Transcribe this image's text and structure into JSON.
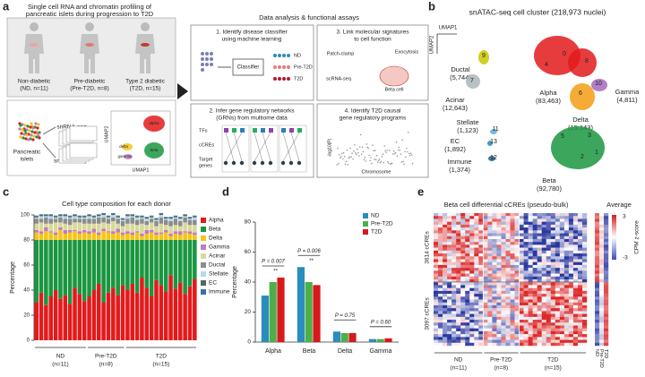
{
  "panel_labels": [
    "a",
    "b",
    "c",
    "d",
    "e"
  ],
  "panel_a": {
    "header": [
      "Single cell RNA and chromatin profiling of",
      "pancreatic islets during progression to T2D"
    ],
    "donors": [
      [
        "Non-diabetic",
        "(ND, n=11)"
      ],
      [
        "Pre-diabetic",
        "(Pre-T2D, n=8)"
      ],
      [
        "Type 2 diabetic",
        "(T2D, n=15)"
      ]
    ],
    "islets": [
      "Pancreatic",
      "islets"
    ],
    "assays": [
      "snRNA-seq",
      "snATAC-seq"
    ],
    "umap_axes": [
      "UMAP2",
      "UMAP1"
    ],
    "umap_clusters": [
      "alpha",
      "beta",
      "delta",
      "gamma"
    ],
    "right_title": "Data analysis & functional assays",
    "box1": {
      "title": [
        "1. Identify disease classifier",
        "using machine learning"
      ],
      "classifier": "Classifier",
      "classes": [
        "ND",
        "Pre-T2D",
        "T2D"
      ]
    },
    "box2": {
      "title": [
        "2. Infer gene regulatory networks",
        "(GRNs) from multiome data"
      ],
      "rows": [
        "TFs",
        "cCREs",
        [
          "Target",
          "genes"
        ]
      ]
    },
    "box3": {
      "title": [
        "3. Link molecular signatures",
        "to cell function"
      ],
      "patch": "Patch-clamp",
      "exo": "Exocytosis",
      "sc": "scRNA-seq",
      "cell": "Beta cell"
    },
    "box4": {
      "title": [
        "4. Identify T2D causal",
        "gene regulatory programs"
      ],
      "ylabel": "-log10(P)",
      "xlabel": "Chromosome"
    }
  },
  "panel_b": {
    "title": "snATAC-seq cell cluster (218,973 nuclei)",
    "axes": [
      "UMAP1",
      "UMAP2"
    ],
    "clusters": [
      {
        "name": "Alpha",
        "count": "(83,463)",
        "ids": [
          "0",
          "4",
          "8"
        ]
      },
      {
        "name": "Gamma",
        "count": "(4,811)",
        "ids": [
          "10"
        ]
      },
      {
        "name": "Delta",
        "count": "(15,143)",
        "ids": [
          "6"
        ]
      },
      {
        "name": "Beta",
        "count": "(92,780)",
        "ids": [
          "5",
          "3",
          "2",
          "1"
        ]
      },
      {
        "name": "Ductal",
        "count": "(5,744)",
        "ids": [
          "9"
        ]
      },
      {
        "name": "Acinar",
        "count": "(12,643)",
        "ids": [
          "7"
        ]
      },
      {
        "name": "Stellate",
        "count": "(1,123)",
        "ids": [
          "11"
        ]
      },
      {
        "name": "EC",
        "count": "(1,892)",
        "ids": [
          "13"
        ]
      },
      {
        "name": "Immune",
        "count": "(1,374)",
        "ids": [
          "12"
        ]
      }
    ]
  },
  "chart_data": [
    {
      "type": "stacked-bar",
      "title": "Cell type composition for each donor",
      "ylabel": "Percentage",
      "ylim": [
        0,
        100
      ],
      "yticks": [
        0,
        20,
        40,
        60,
        80,
        100
      ],
      "categories": [
        null,
        null,
        null,
        null,
        null,
        null,
        null,
        null,
        null,
        null,
        null,
        null,
        null,
        null,
        null,
        null,
        null,
        null,
        null,
        null,
        null,
        null,
        null,
        null,
        null,
        null,
        null,
        null,
        null,
        null,
        null,
        null,
        null,
        null
      ],
      "groups": [
        {
          "name": "ND",
          "n": "(n=11)",
          "size": 11
        },
        {
          "name": "Pre-T2D",
          "n": "(n=8)",
          "size": 8
        },
        {
          "name": "T2D",
          "n": "(n=15)",
          "size": 15
        }
      ],
      "series": [
        {
          "name": "Alpha",
          "color": "#e31a1c",
          "values": [
            30,
            38,
            28,
            35,
            40,
            33,
            36,
            29,
            42,
            37,
            31,
            35,
            40,
            45,
            30,
            38,
            42,
            36,
            44,
            40,
            45,
            38,
            50,
            42,
            35,
            48,
            44,
            39,
            52,
            41,
            46,
            37,
            43,
            49
          ]
        },
        {
          "name": "Beta",
          "color": "#1a9641",
          "values": [
            50,
            42,
            52,
            45,
            40,
            47,
            44,
            51,
            38,
            43,
            49,
            45,
            40,
            35,
            50,
            42,
            38,
            44,
            36,
            40,
            35,
            42,
            30,
            38,
            45,
            32,
            36,
            41,
            28,
            39,
            34,
            43,
            37,
            31
          ]
        },
        {
          "name": "Delta",
          "color": "#f5c518",
          "values": [
            6,
            5,
            7,
            6,
            4,
            8,
            5,
            6,
            7,
            5,
            6,
            5,
            6,
            4,
            7,
            6,
            5,
            6,
            4,
            5,
            4,
            6,
            3,
            5,
            6,
            4,
            5,
            6,
            3,
            5,
            4,
            6,
            5,
            4
          ]
        },
        {
          "name": "Gamma",
          "color": "#c27bbd",
          "values": [
            2,
            2,
            3,
            1,
            2,
            2,
            3,
            2,
            1,
            2,
            2,
            2,
            3,
            2,
            2,
            1,
            2,
            3,
            2,
            2,
            2,
            1,
            2,
            3,
            2,
            2,
            1,
            2,
            2,
            2,
            3,
            1,
            2,
            2
          ]
        },
        {
          "name": "Acinar",
          "color": "#d8d89c",
          "values": [
            5,
            7,
            3,
            6,
            8,
            4,
            5,
            4,
            6,
            7,
            5,
            6,
            4,
            7,
            5,
            6,
            8,
            4,
            5,
            6,
            7,
            5,
            8,
            4,
            6,
            5,
            7,
            4,
            6,
            5,
            4,
            7,
            5,
            6
          ]
        },
        {
          "name": "Ductal",
          "color": "#8c8c8c",
          "values": [
            4,
            3,
            5,
            4,
            3,
            4,
            4,
            5,
            3,
            3,
            4,
            4,
            4,
            5,
            4,
            4,
            3,
            4,
            4,
            4,
            5,
            4,
            4,
            3,
            3,
            4,
            5,
            4,
            4,
            5,
            4,
            4,
            4,
            4
          ]
        },
        {
          "name": "Stellate",
          "color": "#b7d9ea",
          "values": [
            1,
            2,
            1,
            2,
            1,
            1,
            2,
            1,
            2,
            1,
            1,
            2,
            1,
            1,
            2,
            1,
            2,
            1,
            1,
            2,
            1,
            2,
            1,
            2,
            1,
            1,
            2,
            1,
            2,
            1,
            2,
            1,
            1,
            2
          ]
        },
        {
          "name": "EC",
          "color": "#4d6a5a",
          "values": [
            1,
            1,
            1,
            1,
            1,
            1,
            1,
            1,
            1,
            1,
            1,
            1,
            1,
            1,
            1,
            1,
            1,
            1,
            1,
            1,
            1,
            1,
            1,
            1,
            1,
            1,
            1,
            1,
            1,
            1,
            1,
            1,
            1,
            1
          ]
        },
        {
          "name": "Immune",
          "color": "#3a6fb5",
          "values": [
            0.5,
            0.5,
            0.5,
            0.5,
            0.5,
            0.5,
            0.5,
            0.5,
            0.5,
            0.5,
            0.5,
            0.5,
            0.5,
            0.5,
            0.5,
            0.5,
            0.5,
            0.5,
            0.5,
            0.5,
            0.5,
            0.5,
            0.5,
            0.5,
            0.5,
            0.5,
            0.5,
            0.5,
            0.5,
            0.5,
            0.5,
            0.5,
            0.5,
            0.5
          ]
        }
      ]
    },
    {
      "type": "grouped-bar",
      "ylabel": "Percentage",
      "ylim": [
        0,
        80
      ],
      "yticks": [
        0,
        20,
        40,
        60,
        80
      ],
      "categories": [
        "Alpha",
        "Beta",
        "Delta",
        "Gamma"
      ],
      "series": [
        {
          "name": "ND",
          "color": "#2b8cbe",
          "values": [
            31,
            50,
            7,
            2
          ]
        },
        {
          "name": "Pre-T2D",
          "color": "#4daf4a",
          "values": [
            40,
            40,
            6,
            2
          ]
        },
        {
          "name": "T2D",
          "color": "#d7191c",
          "values": [
            43,
            38,
            6,
            2.5
          ]
        }
      ],
      "annotations": [
        {
          "p": "P = 0.007",
          "stars": "**"
        },
        {
          "p": "P = 0.006",
          "stars": "**"
        },
        {
          "p": "P = 0.75"
        },
        {
          "p": "P = 0.60"
        }
      ]
    }
  ],
  "panel_e": {
    "title": "Beta cell differential cCREs (pseudo-bulk)",
    "average": "Average",
    "blocks": [
      "3614 cCREs",
      "3097 cCREs"
    ],
    "colorbar_label": "CPM z-score",
    "colorbar_ticks": [
      3,
      -3
    ],
    "groups": [
      {
        "name": "ND",
        "n": "(n=11)"
      },
      {
        "name": "Pre-T2D",
        "n": "(n=8)"
      },
      {
        "name": "T2D",
        "n": "(n=15)"
      }
    ],
    "average_cols": [
      "ND",
      "Pre-T2D",
      "T2D"
    ]
  }
}
